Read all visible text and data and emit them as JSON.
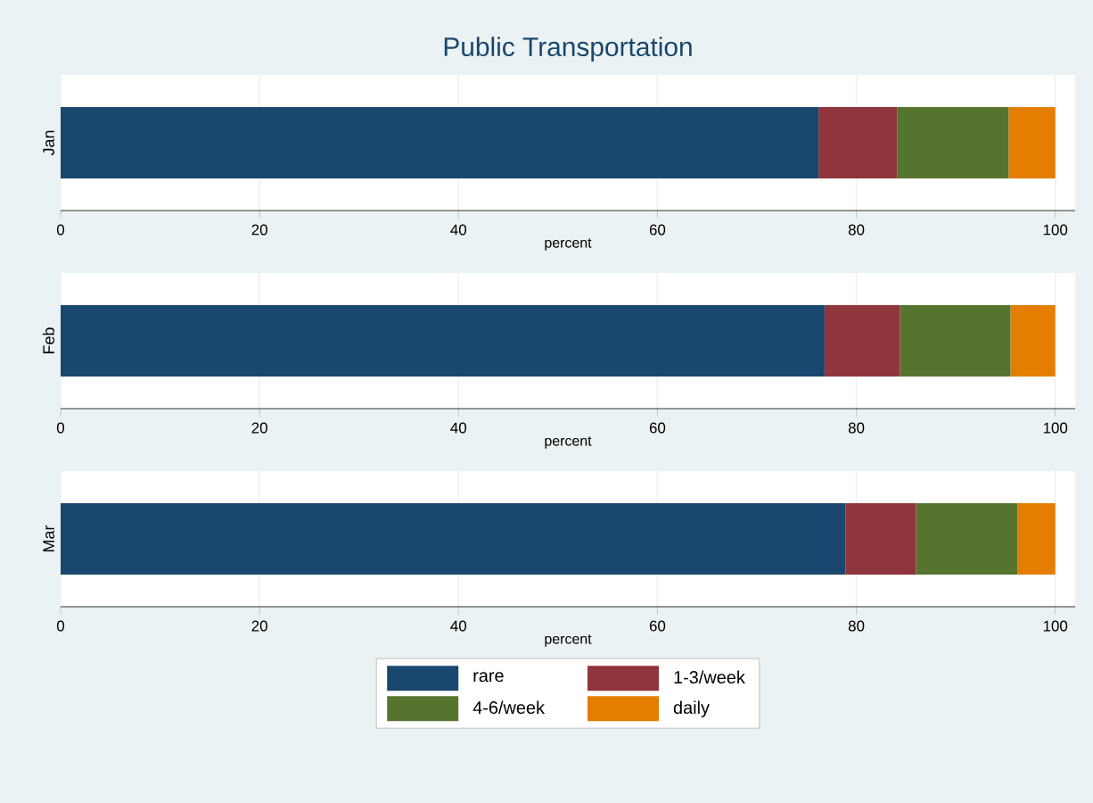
{
  "chart_data": [
    {
      "type": "bar",
      "title": "Public Transportation",
      "orientation": "horizontal",
      "stacked": true,
      "categories": [
        "Jan"
      ],
      "xlabel": "percent",
      "xlim": [
        0,
        102
      ],
      "xticks": [
        0,
        20,
        40,
        60,
        80,
        100
      ],
      "grid": "x",
      "legend": false,
      "series": [
        {
          "color": "#1a476f",
          "values": [
            76.2
          ]
        },
        {
          "color": "#90353b",
          "values": [
            7.9
          ]
        },
        {
          "color": "#55752f",
          "values": [
            11.2
          ]
        },
        {
          "color": "#e37e00",
          "values": [
            4.7
          ]
        }
      ]
    },
    {
      "type": "bar",
      "orientation": "horizontal",
      "stacked": true,
      "categories": [
        "Feb"
      ],
      "xlabel": "percent",
      "xlim": [
        0,
        102
      ],
      "xticks": [
        0,
        20,
        40,
        60,
        80,
        100
      ],
      "grid": "x",
      "legend": false,
      "series": [
        {
          "color": "#1a476f",
          "values": [
            76.8
          ]
        },
        {
          "color": "#90353b",
          "values": [
            7.6
          ]
        },
        {
          "color": "#55752f",
          "values": [
            11.1
          ]
        },
        {
          "color": "#e37e00",
          "values": [
            4.5
          ]
        }
      ]
    },
    {
      "type": "bar",
      "orientation": "horizontal",
      "stacked": true,
      "categories": [
        "Mar"
      ],
      "xlabel": "percent",
      "xlim": [
        0,
        102
      ],
      "xticks": [
        0,
        20,
        40,
        60,
        80,
        100
      ],
      "grid": "x",
      "legend": "bottom",
      "series": [
        {
          "name": "rare",
          "color": "#1a476f",
          "values": [
            78.9
          ]
        },
        {
          "name": "1-3/week",
          "color": "#90353b",
          "values": [
            7.1
          ]
        },
        {
          "name": "4-6/week",
          "color": "#55752f",
          "values": [
            10.2
          ]
        },
        {
          "name": "daily",
          "color": "#e37e00",
          "values": [
            3.8
          ]
        }
      ]
    }
  ]
}
